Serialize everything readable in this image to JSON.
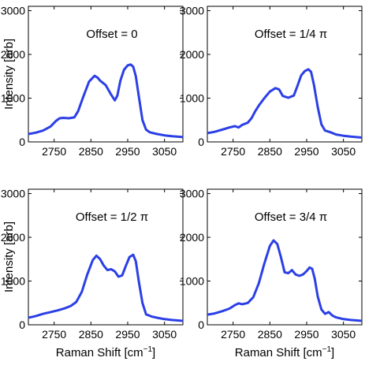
{
  "chart_data": [
    {
      "type": "line",
      "title": "Offset = 0",
      "xlabel": "",
      "ylabel": "Intensity [arb]",
      "xlim": [
        2680,
        3100
      ],
      "ylim": [
        0,
        3100
      ],
      "xticks": [
        2750,
        2850,
        2950,
        3050
      ],
      "yticks": [
        0,
        1000,
        2000,
        3000
      ],
      "xtick_labels": [
        "2750",
        "2850",
        "2950",
        "3050"
      ],
      "ytick_labels": [
        "0",
        "1000",
        "2000",
        "3000"
      ],
      "series": [
        {
          "color": "#2b3fe6",
          "x": [
            2680,
            2700,
            2720,
            2740,
            2755,
            2765,
            2775,
            2790,
            2805,
            2815,
            2830,
            2845,
            2860,
            2868,
            2875,
            2890,
            2905,
            2915,
            2922,
            2930,
            2940,
            2950,
            2958,
            2965,
            2972,
            2980,
            2990,
            3000,
            3010,
            3030,
            3050,
            3070,
            3100
          ],
          "y": [
            180,
            210,
            260,
            350,
            480,
            540,
            550,
            540,
            560,
            700,
            1050,
            1380,
            1510,
            1470,
            1400,
            1300,
            1080,
            950,
            1060,
            1400,
            1650,
            1750,
            1770,
            1720,
            1500,
            1050,
            500,
            280,
            220,
            180,
            150,
            130,
            110
          ]
        }
      ]
    },
    {
      "type": "line",
      "title": "Offset = 1/4 π",
      "xlabel": "",
      "ylabel": "",
      "xlim": [
        2680,
        3100
      ],
      "ylim": [
        0,
        3100
      ],
      "xticks": [
        2750,
        2850,
        2950,
        3050
      ],
      "yticks": [
        0,
        1000,
        2000,
        3000
      ],
      "xtick_labels": [
        "2750",
        "2850",
        "2950",
        "3050"
      ],
      "ytick_labels": [
        "0",
        "1000",
        "2000",
        "3000"
      ],
      "series": [
        {
          "color": "#2b3fe6",
          "x": [
            2680,
            2700,
            2720,
            2740,
            2755,
            2765,
            2775,
            2790,
            2800,
            2810,
            2820,
            2835,
            2850,
            2865,
            2875,
            2885,
            2900,
            2915,
            2925,
            2935,
            2945,
            2955,
            2962,
            2970,
            2980,
            2990,
            3000,
            3015,
            3030,
            3050,
            3070,
            3100
          ],
          "y": [
            200,
            230,
            280,
            330,
            360,
            330,
            390,
            440,
            540,
            700,
            830,
            1000,
            1150,
            1230,
            1200,
            1050,
            1010,
            1060,
            1280,
            1520,
            1620,
            1660,
            1600,
            1300,
            800,
            400,
            260,
            220,
            170,
            140,
            120,
            100
          ]
        }
      ]
    },
    {
      "type": "line",
      "title": "Offset = 1/2 π",
      "xlabel": "Raman Shift [cm",
      "xlabel_sup": "−1",
      "xlabel_end": "]",
      "ylabel": "Intensity [arb]",
      "xlim": [
        2680,
        3100
      ],
      "ylim": [
        0,
        3100
      ],
      "xticks": [
        2750,
        2850,
        2950,
        3050
      ],
      "yticks": [
        0,
        1000,
        2000,
        3000
      ],
      "xtick_labels": [
        "2750",
        "2850",
        "2950",
        "3050"
      ],
      "ytick_labels": [
        "0",
        "1000",
        "2000",
        "3000"
      ],
      "series": [
        {
          "color": "#2b3fe6",
          "x": [
            2680,
            2700,
            2720,
            2740,
            2760,
            2780,
            2795,
            2810,
            2825,
            2840,
            2855,
            2865,
            2875,
            2885,
            2895,
            2905,
            2915,
            2925,
            2935,
            2945,
            2955,
            2965,
            2972,
            2980,
            2990,
            3000,
            3015,
            3030,
            3050,
            3070,
            3100
          ],
          "y": [
            160,
            200,
            250,
            290,
            330,
            380,
            430,
            520,
            750,
            1150,
            1480,
            1580,
            1500,
            1350,
            1250,
            1270,
            1220,
            1100,
            1130,
            1350,
            1550,
            1600,
            1450,
            1000,
            500,
            240,
            190,
            160,
            130,
            110,
            90
          ]
        }
      ]
    },
    {
      "type": "line",
      "title": "Offset = 3/4 π",
      "xlabel": "Raman Shift [cm",
      "xlabel_sup": "−1",
      "xlabel_end": "]",
      "ylabel": "",
      "xlim": [
        2680,
        3100
      ],
      "ylim": [
        0,
        3100
      ],
      "xticks": [
        2750,
        2850,
        2950,
        3050
      ],
      "yticks": [
        0,
        1000,
        2000,
        3000
      ],
      "xtick_labels": [
        "2750",
        "2850",
        "2950",
        "3050"
      ],
      "ytick_labels": [
        "0",
        "1000",
        "2000",
        "3000"
      ],
      "series": [
        {
          "color": "#2b3fe6",
          "x": [
            2680,
            2700,
            2720,
            2740,
            2755,
            2765,
            2775,
            2790,
            2805,
            2820,
            2835,
            2850,
            2860,
            2870,
            2880,
            2890,
            2900,
            2910,
            2920,
            2930,
            2940,
            2950,
            2958,
            2965,
            2972,
            2980,
            2990,
            3000,
            3010,
            3020,
            3030,
            3050,
            3070,
            3100
          ],
          "y": [
            230,
            260,
            310,
            370,
            450,
            490,
            470,
            500,
            630,
            950,
            1400,
            1800,
            1930,
            1850,
            1550,
            1200,
            1180,
            1250,
            1150,
            1120,
            1150,
            1230,
            1310,
            1280,
            1050,
            650,
            350,
            250,
            290,
            210,
            170,
            130,
            110,
            90
          ]
        }
      ]
    }
  ]
}
